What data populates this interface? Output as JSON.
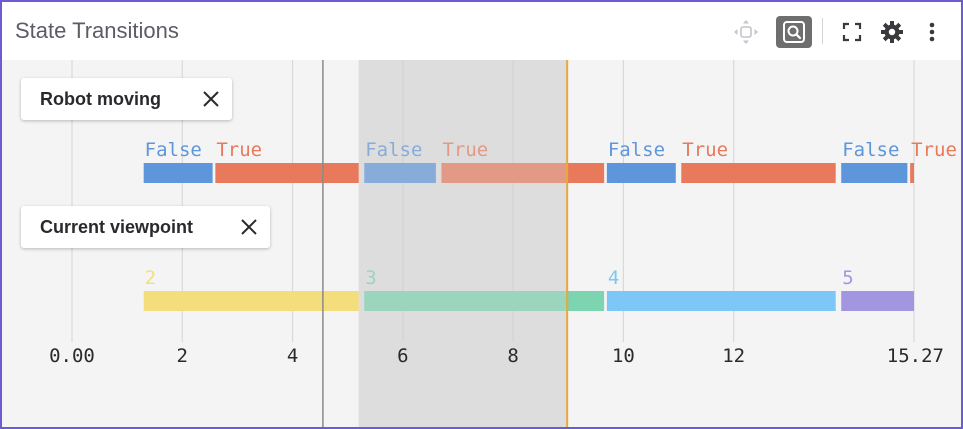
{
  "panel": {
    "title": "State Transitions",
    "toolbar": [
      {
        "icon": "move-icon",
        "active": false
      },
      {
        "icon": "zoom-icon",
        "active": true
      },
      {
        "icon": "fullscreen-icon",
        "active": false
      },
      {
        "icon": "gear-icon",
        "active": false
      },
      {
        "icon": "more-vertical-icon",
        "active": false
      }
    ]
  },
  "chart_data": {
    "type": "state-timeline",
    "xlim": [
      0,
      15.27
    ],
    "ticks": [
      "0.00",
      "2",
      "4",
      "6",
      "8",
      "10",
      "12",
      "15.27"
    ],
    "tick_values": [
      0,
      2,
      4,
      6,
      8,
      10,
      12,
      15.27
    ],
    "cursor_time": 4.55,
    "playhead_time": 8.98,
    "selection_range": [
      5.2,
      8.98
    ],
    "series": [
      {
        "name": "Robot moving",
        "segments": [
          {
            "label": "False",
            "start": 1.3,
            "end": 2.55,
            "color": "#5e96dc"
          },
          {
            "label": "True",
            "start": 2.6,
            "end": 5.2,
            "color": "#e8795a"
          },
          {
            "label": "False",
            "start": 5.3,
            "end": 6.6,
            "color": "#5e96dc"
          },
          {
            "label": "True",
            "start": 6.7,
            "end": 9.65,
            "color": "#e8795a"
          },
          {
            "label": "False",
            "start": 9.7,
            "end": 10.95,
            "color": "#5e96dc"
          },
          {
            "label": "True",
            "start": 11.05,
            "end": 13.85,
            "color": "#e8795a"
          },
          {
            "label": "False",
            "start": 13.95,
            "end": 15.15,
            "color": "#5e96dc"
          },
          {
            "label": "True",
            "start": 15.2,
            "end": 15.27,
            "color": "#e8795a"
          }
        ]
      },
      {
        "name": "Current viewpoint",
        "segments": [
          {
            "label": "2",
            "start": 1.3,
            "end": 5.2,
            "color": "#f4de7c"
          },
          {
            "label": "3",
            "start": 5.3,
            "end": 9.65,
            "color": "#7dd4b0"
          },
          {
            "label": "4",
            "start": 9.7,
            "end": 13.85,
            "color": "#7cc7f5"
          },
          {
            "label": "5",
            "start": 13.95,
            "end": 15.27,
            "color": "#a396e0"
          }
        ]
      }
    ]
  }
}
